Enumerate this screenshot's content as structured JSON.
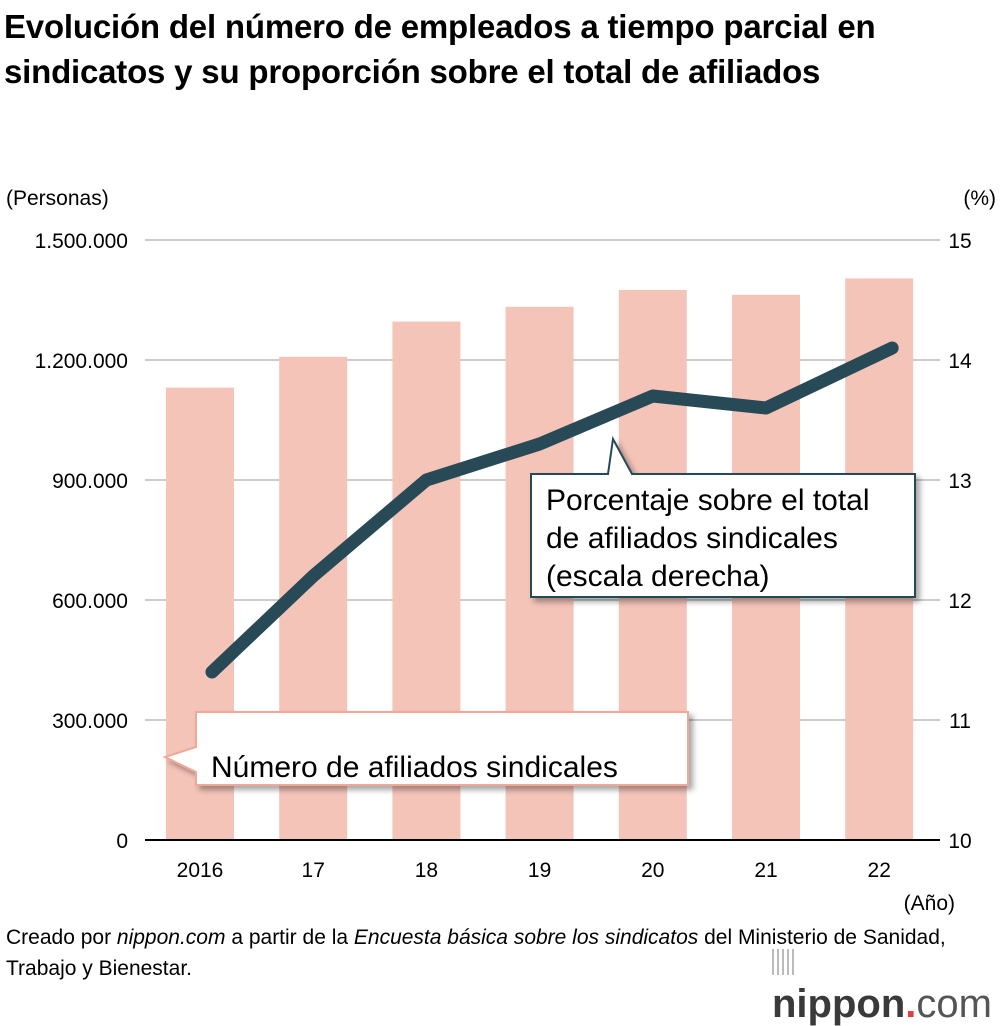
{
  "title": "Evolución del número de empleados a tiempo parcial en sindicatos y su proporción sobre el total de afiliados",
  "colors": {
    "bar": "#f4c4b9",
    "line": "#284a57",
    "grid": "#cccccc",
    "axis": "#000000",
    "logo_dot": "#e0413a"
  },
  "chart_data": {
    "type": "bar+line",
    "title": "Evolución del número de empleados a tiempo parcial en sindicatos y su proporción sobre el total de afiliados",
    "xlabel": "(Año)",
    "ylabel_left": "(Personas)",
    "ylabel_right": "(%)",
    "categories": [
      "2016",
      "17",
      "18",
      "19",
      "20",
      "21",
      "22"
    ],
    "left_axis": {
      "ylim": [
        0,
        1500000
      ],
      "ticks": [
        0,
        300000,
        600000,
        900000,
        1200000,
        1500000
      ],
      "tick_labels": [
        "0",
        "300.000",
        "600.000",
        "900.000",
        "1.200.000",
        "1.500.000"
      ]
    },
    "right_axis": {
      "ylim": [
        10,
        15
      ],
      "ticks": [
        10,
        11,
        12,
        13,
        14,
        15
      ],
      "tick_labels": [
        "10",
        "11",
        "12",
        "13",
        "14",
        "15"
      ]
    },
    "grid": true,
    "series": [
      {
        "name": "Número de afiliados sindicales",
        "type": "bar",
        "axis": "left",
        "values": [
          1131000,
          1208000,
          1296000,
          1333000,
          1375000,
          1363000,
          1404000
        ]
      },
      {
        "name": "Porcentaje sobre el total de afiliados sindicales (escala derecha)",
        "type": "line",
        "axis": "right",
        "values": [
          11.4,
          12.2,
          13.0,
          13.3,
          13.7,
          13.6,
          14.1
        ]
      }
    ],
    "annotations": [
      {
        "target": "bar",
        "lines": [
          "Número de afiliados sindicales"
        ]
      },
      {
        "target": "line",
        "lines": [
          "Porcentaje sobre el total",
          "de afiliados sindicales",
          "(escala derecha)"
        ]
      }
    ]
  },
  "footer": {
    "p1": "Creado por ",
    "p2": "nippon.com",
    "p3": " a partir de la ",
    "p4": "Encuesta básica sobre los sindicatos",
    "p5": " del Ministerio de Sanidad, Trabajo y Bienestar."
  },
  "logo": {
    "name": "nippon",
    "dot": ".",
    "tld": "com"
  }
}
